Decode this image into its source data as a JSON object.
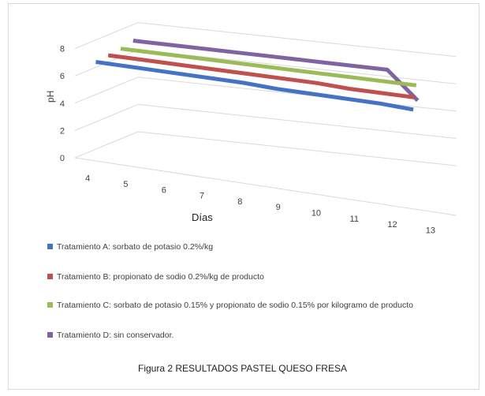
{
  "chart_data": {
    "type": "line",
    "render": "3d",
    "xlabel": "Días",
    "ylabel": "pH",
    "x": [
      4,
      5,
      6,
      7,
      8,
      9,
      10,
      11,
      12,
      13
    ],
    "y_ticks": [
      0,
      2,
      4,
      6,
      8
    ],
    "ylim": [
      0,
      8
    ],
    "legend_position": "bottom",
    "grid": true,
    "series": [
      {
        "name": "Tratamiento A: sorbato de potasio 0.2%/kg",
        "color": "#4472C4",
        "values": [
          6.6,
          6.6,
          6.6,
          6.6,
          6.6,
          6.5,
          6.5,
          6.5,
          6.5,
          6.4
        ]
      },
      {
        "name": "Tratamiento B: propionato de sodio 0.2%/kg de producto",
        "color": "#C0504D",
        "values": [
          6.7,
          6.7,
          6.7,
          6.7,
          6.7,
          6.7,
          6.7,
          6.6,
          6.6,
          6.6
        ]
      },
      {
        "name": "Tratamiento C: sorbato de potasio 0.15% y propionato de sodio 0.15% por kilogramo de producto",
        "color": "#9BBB59",
        "values": [
          6.8,
          6.8,
          6.8,
          6.8,
          6.8,
          6.8,
          6.8,
          6.8,
          6.8,
          6.8
        ]
      },
      {
        "name": "Tratamiento D: sin conservador.",
        "color": "#8064A2",
        "values": [
          7.0,
          7.0,
          7.0,
          7.0,
          7.0,
          7.0,
          7.0,
          7.0,
          7.0,
          5.0
        ]
      }
    ]
  },
  "caption": "Figura 2 RESULTADOS PASTEL QUESO FRESA"
}
